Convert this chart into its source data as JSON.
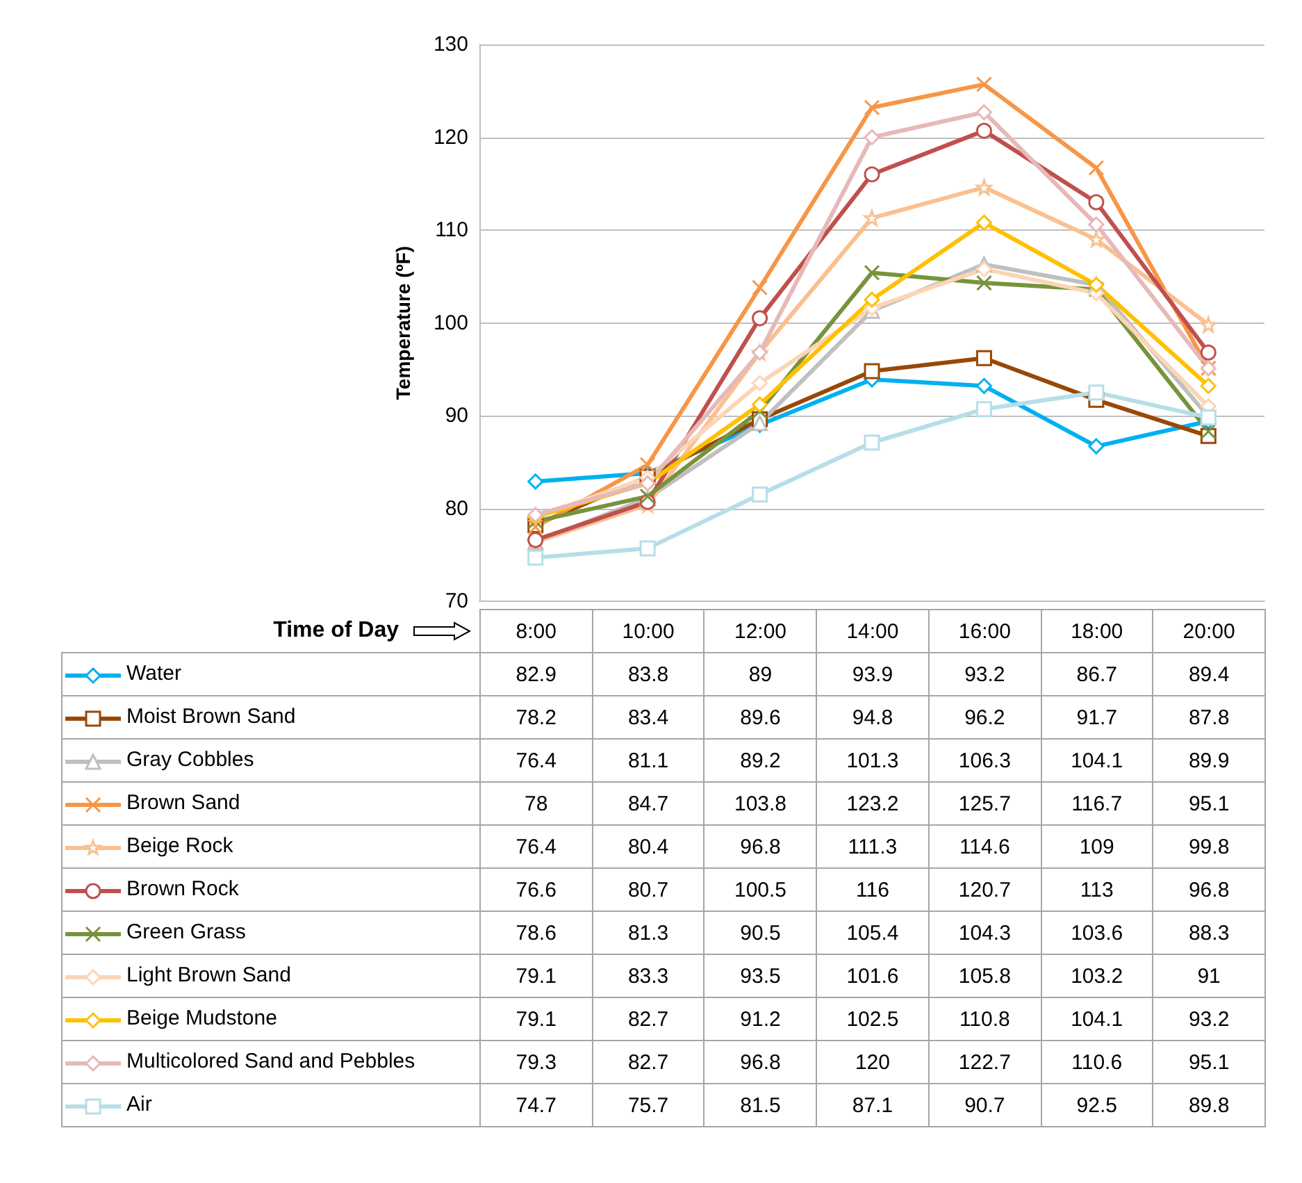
{
  "chart_data": {
    "type": "line",
    "xlabel": "Time of Day",
    "ylabel": "Temperature (ºF)",
    "categories": [
      "8:00",
      "10:00",
      "12:00",
      "14:00",
      "16:00",
      "18:00",
      "20:00"
    ],
    "ylim": [
      70,
      130
    ],
    "yticks": [
      70,
      80,
      90,
      100,
      110,
      120,
      130
    ],
    "grid": "y",
    "legend": "bottom",
    "data_labels": true,
    "series": [
      {
        "name": "Water",
        "color": "#00b0f0",
        "marker": "diamond",
        "values": [
          82.9,
          83.8,
          89,
          93.9,
          93.2,
          86.7,
          89.4
        ]
      },
      {
        "name": "Moist Brown Sand",
        "color": "#984807",
        "marker": "square",
        "values": [
          78.2,
          83.4,
          89.6,
          94.8,
          96.2,
          91.7,
          87.8
        ]
      },
      {
        "name": "Gray Cobbles",
        "color": "#bfbfbf",
        "marker": "triangle",
        "values": [
          76.4,
          81.1,
          89.2,
          101.3,
          106.3,
          104.1,
          89.9
        ]
      },
      {
        "name": "Brown Sand",
        "color": "#f79646",
        "marker": "cross",
        "values": [
          78,
          84.7,
          103.8,
          123.2,
          125.7,
          116.7,
          95.1
        ]
      },
      {
        "name": "Beige Rock",
        "color": "#fac090",
        "marker": "star",
        "values": [
          76.4,
          80.4,
          96.8,
          111.3,
          114.6,
          109,
          99.8
        ]
      },
      {
        "name": "Brown Rock",
        "color": "#c0504d",
        "marker": "circle",
        "values": [
          76.6,
          80.7,
          100.5,
          116,
          120.7,
          113,
          96.8
        ]
      },
      {
        "name": "Green Grass",
        "color": "#77933c",
        "marker": "cross",
        "values": [
          78.6,
          81.3,
          90.5,
          105.4,
          104.3,
          103.6,
          88.3
        ]
      },
      {
        "name": "Light Brown Sand",
        "color": "#fcd5b5",
        "marker": "diamond",
        "values": [
          79.1,
          83.3,
          93.5,
          101.6,
          105.8,
          103.2,
          91
        ]
      },
      {
        "name": "Beige Mudstone",
        "color": "#ffc000",
        "marker": "diamond",
        "values": [
          79.1,
          82.7,
          91.2,
          102.5,
          110.8,
          104.1,
          93.2
        ]
      },
      {
        "name": "Multicolored Sand and Pebbles",
        "color": "#e6b9b8",
        "marker": "diamond",
        "values": [
          79.3,
          82.7,
          96.8,
          120,
          122.7,
          110.6,
          95.1
        ]
      },
      {
        "name": "Air",
        "color": "#b7dee8",
        "marker": "square",
        "values": [
          74.7,
          75.7,
          81.5,
          87.1,
          90.7,
          92.5,
          89.8
        ]
      }
    ]
  }
}
